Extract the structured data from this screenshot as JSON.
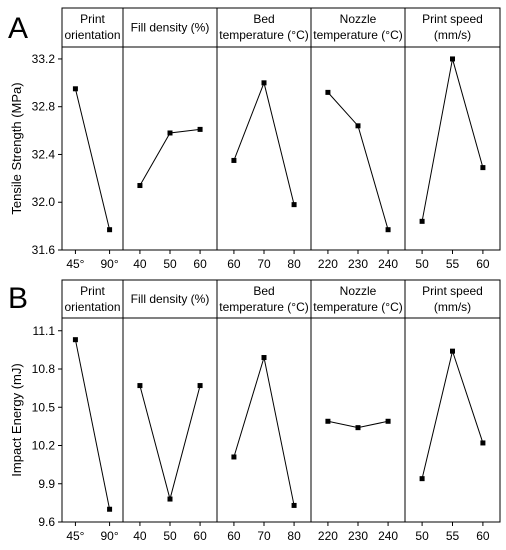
{
  "chart_data": [
    {
      "type": "line",
      "panel_label": "A",
      "ylabel": "Tensile Strength (MPa)",
      "ylim": [
        31.6,
        33.3
      ],
      "yticks": [
        "31.6",
        "32.0",
        "32.4",
        "32.8",
        "33.2"
      ],
      "ytick_values": [
        31.6,
        32.0,
        32.4,
        32.8,
        33.2
      ],
      "facets": [
        {
          "title_lines": [
            "Print",
            "orientation"
          ],
          "categories": [
            "45°",
            "90°"
          ],
          "values": [
            32.95,
            31.77
          ]
        },
        {
          "title_lines": [
            "Fill density (%)"
          ],
          "categories": [
            "40",
            "50",
            "60"
          ],
          "values": [
            32.14,
            32.58,
            32.61
          ]
        },
        {
          "title_lines": [
            "Bed",
            "temperature (°C)"
          ],
          "categories": [
            "60",
            "70",
            "80"
          ],
          "values": [
            32.35,
            33.0,
            31.98
          ]
        },
        {
          "title_lines": [
            "Nozzle",
            "temperature (°C)"
          ],
          "categories": [
            "220",
            "230",
            "240"
          ],
          "values": [
            32.92,
            32.64,
            31.77
          ]
        },
        {
          "title_lines": [
            "Print speed",
            "(mm/s)"
          ],
          "categories": [
            "50",
            "55",
            "60"
          ],
          "values": [
            31.84,
            33.2,
            32.29
          ]
        }
      ]
    },
    {
      "type": "line",
      "panel_label": "B",
      "ylabel": "Impact Energy (mJ)",
      "ylim": [
        9.6,
        11.2
      ],
      "yticks": [
        "9.6",
        "9.9",
        "10.2",
        "10.5",
        "10.8",
        "11.1"
      ],
      "ytick_values": [
        9.6,
        9.9,
        10.2,
        10.5,
        10.8,
        11.1
      ],
      "facets": [
        {
          "title_lines": [
            "Print",
            "orientation"
          ],
          "categories": [
            "45°",
            "90°"
          ],
          "values": [
            11.03,
            9.7
          ]
        },
        {
          "title_lines": [
            "Fill density (%)"
          ],
          "categories": [
            "40",
            "50",
            "60"
          ],
          "values": [
            10.67,
            9.78,
            10.67
          ]
        },
        {
          "title_lines": [
            "Bed",
            "temperature (°C)"
          ],
          "categories": [
            "60",
            "70",
            "80"
          ],
          "values": [
            10.11,
            10.89,
            9.73
          ]
        },
        {
          "title_lines": [
            "Nozzle",
            "temperature (°C)"
          ],
          "categories": [
            "220",
            "230",
            "240"
          ],
          "values": [
            10.39,
            10.34,
            10.39
          ]
        },
        {
          "title_lines": [
            "Print speed",
            "(mm/s)"
          ],
          "categories": [
            "50",
            "55",
            "60"
          ],
          "values": [
            9.94,
            10.94,
            10.22
          ]
        }
      ]
    }
  ]
}
